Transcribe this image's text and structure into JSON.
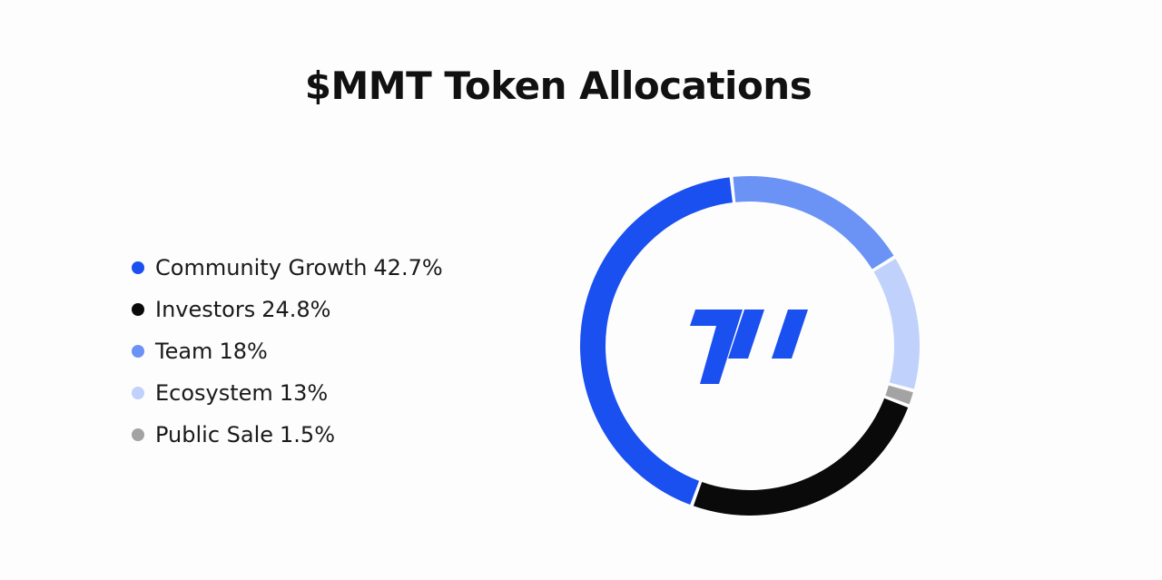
{
  "chart_data": {
    "type": "pie",
    "variant": "donut",
    "title": "$MMT Token Allocations",
    "legend_position": "left",
    "slices": [
      {
        "label": "Community Growth",
        "value": 42.7,
        "value_label": "42.7%",
        "color": "#1a4ff0"
      },
      {
        "label": "Investors",
        "value": 24.8,
        "value_label": "24.8%",
        "color": "#0a0a0a"
      },
      {
        "label": "Team",
        "value": 18,
        "value_label": "18%",
        "color": "#6a93f5"
      },
      {
        "label": "Ecosystem",
        "value": 13,
        "value_label": "13%",
        "color": "#c0d1fb"
      },
      {
        "label": "Public Sale",
        "value": 1.5,
        "value_label": "1.5%",
        "color": "#a3a3a3"
      }
    ]
  },
  "logo": {
    "icon": "mmt-logo-icon",
    "color": "#1a4ff0"
  }
}
